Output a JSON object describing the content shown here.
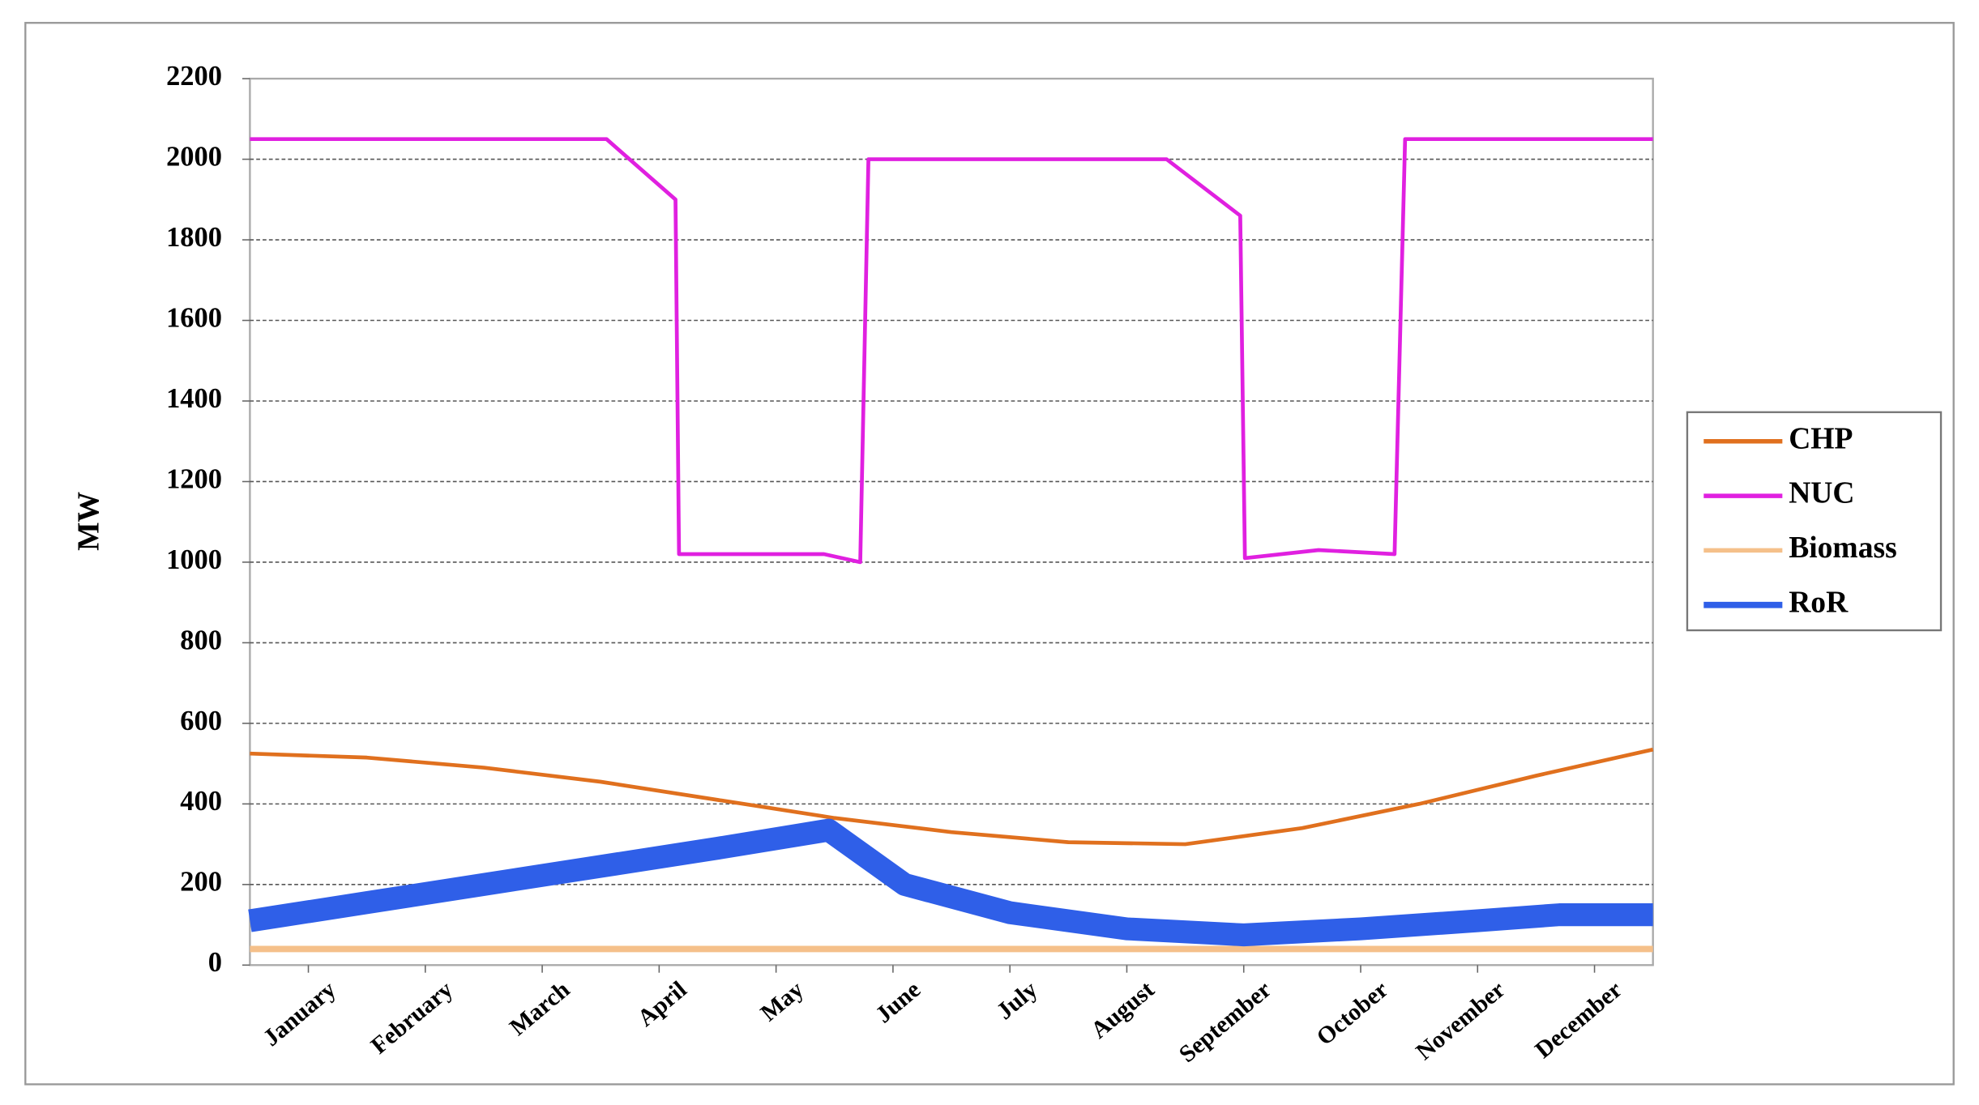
{
  "chart_data": {
    "type": "line",
    "ylabel": "MW",
    "xlim": [
      0,
      12
    ],
    "ylim": [
      0,
      2200
    ],
    "yticks": [
      0,
      200,
      400,
      600,
      800,
      1000,
      1200,
      1400,
      1600,
      1800,
      2000,
      2200
    ],
    "xticks": [
      {
        "value": 0.5,
        "label": "January"
      },
      {
        "value": 1.5,
        "label": "February"
      },
      {
        "value": 2.5,
        "label": "March"
      },
      {
        "value": 3.5,
        "label": "April"
      },
      {
        "value": 4.5,
        "label": "May"
      },
      {
        "value": 5.5,
        "label": "June"
      },
      {
        "value": 6.5,
        "label": "July"
      },
      {
        "value": 7.5,
        "label": "August"
      },
      {
        "value": 8.5,
        "label": "September"
      },
      {
        "value": 9.5,
        "label": "October"
      },
      {
        "value": 10.5,
        "label": "November"
      },
      {
        "value": 11.5,
        "label": "December"
      }
    ],
    "grid": true,
    "legend": "right",
    "series": [
      {
        "name": "CHP",
        "color": "#e0701e",
        "x": [
          0,
          1,
          2,
          3,
          4,
          5,
          6,
          7,
          8,
          9,
          10,
          11,
          12
        ],
        "values": [
          525,
          515,
          490,
          455,
          410,
          365,
          330,
          305,
          300,
          340,
          400,
          470,
          535
        ]
      },
      {
        "name": "NUC",
        "color": "#e020e0",
        "x": [
          0,
          3.05,
          3.64,
          3.67,
          4.91,
          5.22,
          5.29,
          7.84,
          8.47,
          8.51,
          9.14,
          9.79,
          9.88,
          12
        ],
        "values": [
          2050,
          2050,
          1900,
          1020,
          1020,
          1000,
          2000,
          2000,
          1860,
          1010,
          1030,
          1020,
          2050,
          2050
        ]
      },
      {
        "name": "Biomass",
        "color": "#f5c08a",
        "x": [
          0,
          12
        ],
        "values": [
          40,
          40
        ]
      },
      {
        "name": "RoR",
        "color": "#2f5fe8",
        "x": [
          0,
          1,
          2,
          3,
          4,
          4.95,
          5.6,
          6.5,
          7.5,
          8.5,
          9.5,
          10.5,
          11.2,
          12
        ],
        "values": [
          110,
          155,
          200,
          245,
          290,
          335,
          200,
          130,
          90,
          75,
          90,
          110,
          125,
          125
        ]
      }
    ]
  }
}
